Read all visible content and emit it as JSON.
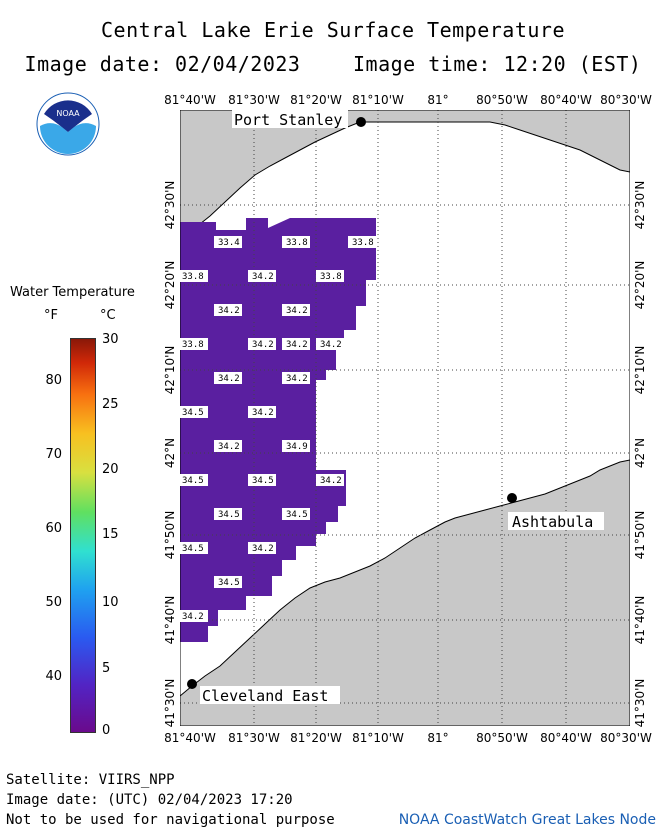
{
  "header": {
    "title": "Central Lake Erie Surface Temperature",
    "image_date": "Image date: 02/04/2023",
    "image_time": "Image time: 12:20 (EST)"
  },
  "logo": {
    "icon": "noaa-logo-icon",
    "text": "NOAA"
  },
  "legend": {
    "title": "Water Temperature",
    "unit_f": "°F",
    "unit_c": "°C",
    "f_ticks": [
      "80",
      "70",
      "60",
      "50",
      "40"
    ],
    "c_ticks": [
      "30",
      "25",
      "20",
      "15",
      "10",
      "5",
      "0"
    ]
  },
  "axes": {
    "lon_labels": [
      "81°40'W",
      "81°30'W",
      "81°20'W",
      "81°10'W",
      "81°",
      "80°50'W",
      "80°40'W",
      "80°30'W"
    ],
    "lat_labels": [
      "42°30'N",
      "42°20'N",
      "42°10'N",
      "42°N",
      "41°50'N",
      "41°40'N",
      "41°30'N"
    ]
  },
  "map": {
    "cities": [
      "Port Stanley",
      "Ashtabula",
      "Cleveland East"
    ],
    "temperatures": [
      "33.4",
      "33.8",
      "33.8",
      "33.8",
      "34.2",
      "33.8",
      "34.2",
      "34.2",
      "33.8",
      "34.2",
      "34.2",
      "34.2",
      "34.2",
      "34.2",
      "34.5",
      "34.2",
      "34.2",
      "34.9",
      "34.5",
      "34.5",
      "34.2",
      "34.5",
      "34.5",
      "34.5",
      "34.2",
      "34.5",
      "34.2"
    ],
    "colors": {
      "land": "#c8c8c8",
      "water": "#ffffff",
      "temperature_fill": "#5a1fa0",
      "grid": "#444444"
    }
  },
  "footer": {
    "satellite": "Satellite: VIIRS_NPP",
    "utc_date": "Image date: (UTC) 02/04/2023  17:20",
    "disclaimer": "Not to be used for navigational purpose",
    "credit": "NOAA CoastWatch Great Lakes Node"
  }
}
